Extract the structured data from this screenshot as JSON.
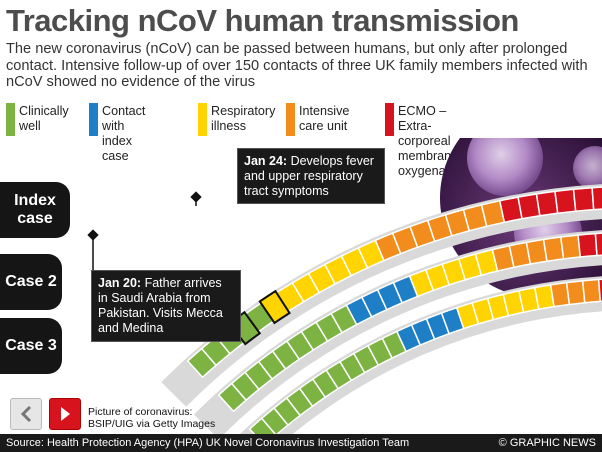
{
  "title": "Tracking nCoV human transmission",
  "subtitle": "The new coronavirus (nCoV) can be passed between humans, but only after prolonged contact. Intensive follow-up of over 150 contacts of three UK family members infected with nCoV showed no evidence of the virus",
  "legend": [
    {
      "label": "Clinically\nwell",
      "color": "#7cb342"
    },
    {
      "label": "Contact with\nindex case",
      "color": "#1e7fc7"
    },
    {
      "label": "Respiratory\nillness",
      "color": "#ffd400"
    },
    {
      "label": "Intensive\ncare unit",
      "color": "#f28c1c"
    },
    {
      "label": "ECMO – Extra-corporeal\nmembrane oxygenation",
      "color": "#d7141e"
    }
  ],
  "cases": [
    {
      "label": "Index\ncase"
    },
    {
      "label": "Case\n2"
    },
    {
      "label": "Case\n3"
    }
  ],
  "callouts": {
    "jan24": {
      "date": "Jan 24:",
      "text": " Develops fever and upper respiratory tract symptoms"
    },
    "jan20": {
      "date": "Jan 20:",
      "text": " Father arrives in Saudi Arabia from Pakistan. Visits Mecca and Medina"
    }
  },
  "picture_credit": "Picture of coronavirus:\nBSIP/UIG via Getty Images",
  "footer": {
    "source": "Source: Health Protection Agency (HPA) UK Novel Coronavirus Investigation Team",
    "credit": "© GRAPHIC NEWS"
  },
  "nav": {
    "prev_icon": "chevron-left-icon",
    "next_icon": "play-icon"
  }
}
